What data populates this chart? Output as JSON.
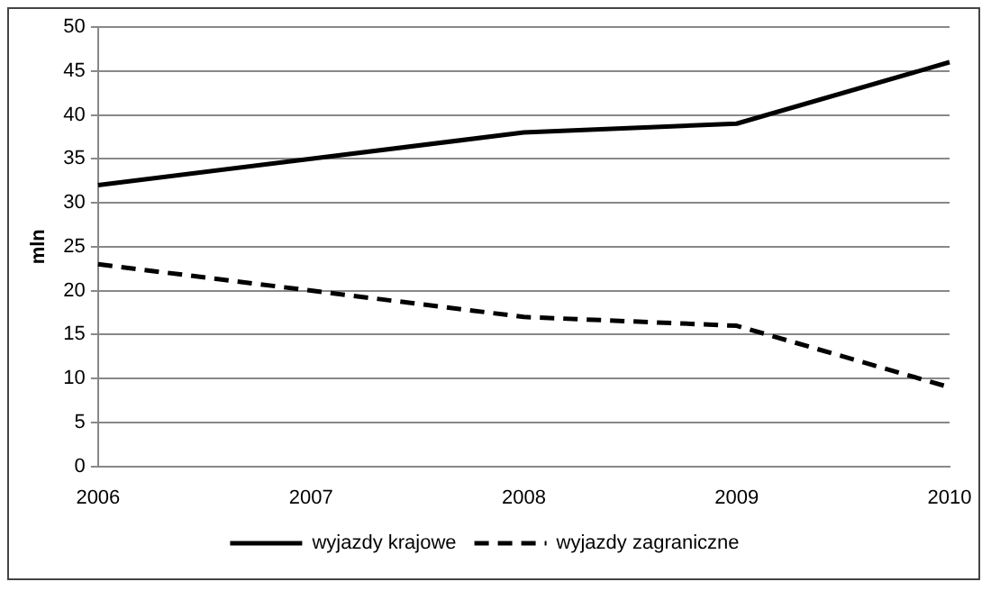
{
  "chart_data": {
    "type": "line",
    "ylabel": "mln",
    "categories": [
      "2006",
      "2007",
      "2008",
      "2009",
      "2010"
    ],
    "series": [
      {
        "name": "wyjazdy krajowe",
        "color": "#000000",
        "line_style": "solid",
        "values": [
          32,
          35,
          38,
          39,
          46
        ]
      },
      {
        "name": "wyjazdy zagraniczne",
        "color": "#000000",
        "line_style": "dashed",
        "values": [
          23,
          20,
          17,
          16,
          9
        ]
      }
    ],
    "ylim": [
      0,
      50
    ],
    "yticks": [
      0,
      5,
      10,
      15,
      20,
      25,
      30,
      35,
      40,
      45,
      50
    ],
    "grid": "y",
    "legend": "bottom",
    "marker": "none"
  }
}
